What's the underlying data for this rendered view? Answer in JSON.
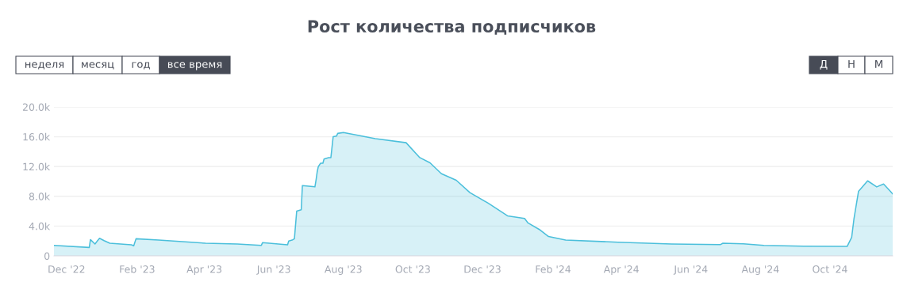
{
  "chart_data": {
    "type": "area",
    "title": "Рост количества подписчиков",
    "annotations": [
      "неделя",
      "месяц",
      "год",
      "все время",
      "Д",
      "Н",
      "М"
    ],
    "x": [
      "2022-11-20",
      "2022-12-21",
      "2022-12-22",
      "2022-12-26",
      "2022-12-28",
      "2022-12-30",
      "2023-01-03",
      "2023-01-08",
      "2023-01-27",
      "2023-01-29",
      "2023-01-31",
      "2023-02-20",
      "2023-04-02",
      "2023-04-30",
      "2023-05-21",
      "2023-05-22",
      "2023-06-13",
      "2023-06-14",
      "2023-06-17",
      "2023-06-19",
      "2023-06-21",
      "2023-06-25",
      "2023-06-26",
      "2023-07-07",
      "2023-07-08",
      "2023-07-09",
      "2023-07-10",
      "2023-07-12",
      "2023-07-14",
      "2023-07-15",
      "2023-07-19",
      "2023-07-21",
      "2023-07-23",
      "2023-07-26",
      "2023-07-27",
      "2023-08-01",
      "2023-08-29",
      "2023-09-25",
      "2023-10-07",
      "2023-10-16",
      "2023-10-26",
      "2023-11-08",
      "2023-11-20",
      "2023-12-06",
      "2023-12-23",
      "2024-01-07",
      "2024-01-10",
      "2024-01-20",
      "2024-01-28",
      "2024-02-12",
      "2024-03-29",
      "2024-05-15",
      "2024-06-27",
      "2024-06-29",
      "2024-07-17",
      "2024-08-04",
      "2024-09-08",
      "2024-10-16",
      "2024-10-20",
      "2024-10-22",
      "2024-10-26",
      "2024-10-28",
      "2024-11-03",
      "2024-11-11",
      "2024-11-17",
      "2024-11-23",
      "2024-11-25"
    ],
    "series": [
      {
        "color": "#4bbfdb",
        "values": [
          1400,
          1130,
          2190,
          1600,
          2000,
          2370,
          2050,
          1700,
          1490,
          1350,
          2300,
          2120,
          1700,
          1600,
          1420,
          1770,
          1490,
          2000,
          2120,
          2300,
          6000,
          6200,
          9450,
          9270,
          10200,
          11300,
          12000,
          12450,
          12450,
          13000,
          13200,
          13200,
          16000,
          16100,
          16450,
          16560,
          15750,
          15200,
          13200,
          12500,
          11040,
          10160,
          8500,
          7080,
          5380,
          5020,
          4420,
          3540,
          2600,
          2120,
          1840,
          1600,
          1520,
          1700,
          1630,
          1420,
          1310,
          1270,
          2480,
          4950,
          8670,
          9020,
          10080,
          9270,
          9660,
          8670,
          8320
        ]
      }
    ],
    "xlim": [
      "2022-11-20",
      "2024-11-25"
    ],
    "xticks": [
      {
        "value": "2022-12-01",
        "label": "Dec '22"
      },
      {
        "value": "2023-02-01",
        "label": "Feb '23"
      },
      {
        "value": "2023-04-01",
        "label": "Apr '23"
      },
      {
        "value": "2023-06-01",
        "label": "Jun '23"
      },
      {
        "value": "2023-08-01",
        "label": "Aug '23"
      },
      {
        "value": "2023-10-01",
        "label": "Oct '23"
      },
      {
        "value": "2023-12-01",
        "label": "Dec '23"
      },
      {
        "value": "2024-02-01",
        "label": "Feb '24"
      },
      {
        "value": "2024-04-01",
        "label": "Apr '24"
      },
      {
        "value": "2024-06-01",
        "label": "Jun '24"
      },
      {
        "value": "2024-08-01",
        "label": "Aug '24"
      },
      {
        "value": "2024-10-01",
        "label": "Oct '24"
      }
    ],
    "ylim": [
      0,
      20000
    ],
    "yticks": [
      0,
      {
        "value": 4000,
        "label": "4.0k"
      },
      {
        "value": 8000,
        "label": "8.0k"
      },
      {
        "value": 12000,
        "label": "12.0k"
      },
      {
        "value": 16000,
        "label": "16.0k"
      },
      {
        "value": 20000,
        "label": "20.0k"
      }
    ],
    "grid": "y",
    "legend": false
  }
}
